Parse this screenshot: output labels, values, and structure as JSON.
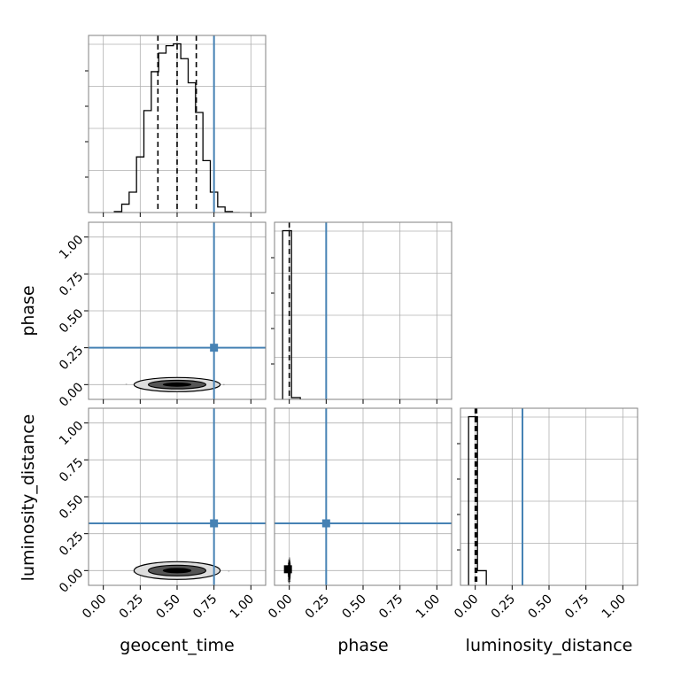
{
  "chart_data": {
    "type": "corner",
    "parameters": [
      "geocent_time",
      "phase",
      "luminosity_distance"
    ],
    "axis_labels": {
      "x": [
        "geocent_time",
        "phase",
        "luminosity_distance"
      ],
      "y": [
        "phase",
        "luminosity_distance"
      ]
    },
    "tick_labels": [
      "0.00",
      "0.25",
      "0.50",
      "0.75",
      "1.00"
    ],
    "axis_range": [
      -0.1,
      1.1
    ],
    "grid": true,
    "truths": {
      "geocent_time": 0.75,
      "phase": 0.25,
      "luminosity_distance": 0.32
    },
    "quantiles": {
      "geocent_time": [
        0.37,
        0.5,
        0.63
      ],
      "phase": [
        0.0
      ],
      "luminosity_distance": [
        0.0,
        0.01
      ]
    },
    "histograms": {
      "geocent_time": {
        "edges": [
          0.075,
          0.125,
          0.175,
          0.225,
          0.275,
          0.325,
          0.375,
          0.425,
          0.475,
          0.525,
          0.575,
          0.625,
          0.675,
          0.725,
          0.775,
          0.825,
          0.875,
          0.925
        ],
        "counts": [
          0.005,
          0.045,
          0.11,
          0.3,
          0.55,
          0.76,
          0.86,
          0.9,
          0.91,
          0.83,
          0.7,
          0.54,
          0.28,
          0.11,
          0.03,
          0.005,
          0.0
        ]
      },
      "phase": {
        "edges": [
          -0.045,
          0.015,
          0.075
        ],
        "counts": [
          0.99,
          0.01
        ]
      },
      "luminosity_distance": {
        "edges": [
          -0.045,
          0.015,
          0.075
        ],
        "counts": [
          0.92,
          0.08
        ]
      }
    },
    "scatter": {
      "geocent_time_vs_phase": {
        "center": [
          0.5,
          0.0
        ],
        "spread": [
          0.18,
          0.005
        ]
      },
      "geocent_time_vs_luminosity_distance": {
        "center": [
          0.5,
          0.0
        ],
        "spread": [
          0.18,
          0.01
        ]
      },
      "phase_vs_luminosity_distance": {
        "center": [
          0.0,
          0.0
        ],
        "spread": [
          0.005,
          0.03
        ]
      }
    },
    "colors": {
      "truth": "#4682b4",
      "histogram": "#000000",
      "grid": "#b0b0b0"
    }
  }
}
